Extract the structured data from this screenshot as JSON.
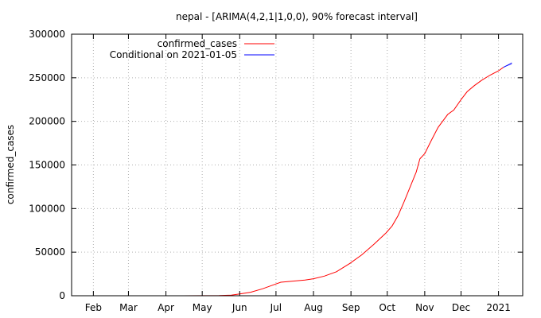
{
  "chart_data": {
    "type": "line",
    "title": "nepal -  [ARIMA(4,2,1|1,0,0), 90% forecast interval]",
    "xlabel": "",
    "ylabel": "confirmed_cases",
    "x_ticks": [
      "Feb",
      "Mar",
      "Apr",
      "May",
      "Jun",
      "Jul",
      "Aug",
      "Sep",
      "Oct",
      "Nov",
      "Dec",
      "2021"
    ],
    "x_tick_dates": [
      "2020-02-01",
      "2020-03-01",
      "2020-04-01",
      "2020-05-01",
      "2020-06-01",
      "2020-07-01",
      "2020-08-01",
      "2020-09-01",
      "2020-10-01",
      "2020-11-01",
      "2020-12-01",
      "2021-01-01"
    ],
    "xlim": [
      "2020-01-14",
      "2021-01-21"
    ],
    "ylim": [
      0,
      300000
    ],
    "y_ticks": [
      0,
      50000,
      100000,
      150000,
      200000,
      250000,
      300000
    ],
    "grid": true,
    "legend_position": "top-left",
    "series": [
      {
        "name": "confirmed_cases",
        "color": "#ff0000",
        "points": [
          [
            "2020-01-23",
            1
          ],
          [
            "2020-03-23",
            2
          ],
          [
            "2020-04-15",
            30
          ],
          [
            "2020-05-01",
            60
          ],
          [
            "2020-05-15",
            300
          ],
          [
            "2020-05-25",
            700
          ],
          [
            "2020-06-01",
            2000
          ],
          [
            "2020-06-10",
            4000
          ],
          [
            "2020-06-20",
            8000
          ],
          [
            "2020-06-30",
            13000
          ],
          [
            "2020-07-05",
            15500
          ],
          [
            "2020-07-15",
            16800
          ],
          [
            "2020-07-25",
            18000
          ],
          [
            "2020-08-01",
            19500
          ],
          [
            "2020-08-10",
            22500
          ],
          [
            "2020-08-20",
            27500
          ],
          [
            "2020-08-31",
            37000
          ],
          [
            "2020-09-10",
            47000
          ],
          [
            "2020-09-20",
            59000
          ],
          [
            "2020-09-30",
            72000
          ],
          [
            "2020-10-05",
            80000
          ],
          [
            "2020-10-10",
            92000
          ],
          [
            "2020-10-15",
            108000
          ],
          [
            "2020-10-20",
            125000
          ],
          [
            "2020-10-25",
            142000
          ],
          [
            "2020-10-28",
            157000
          ],
          [
            "2020-11-01",
            163000
          ],
          [
            "2020-11-06",
            177000
          ],
          [
            "2020-11-12",
            193000
          ],
          [
            "2020-11-20",
            208000
          ],
          [
            "2020-11-25",
            213000
          ],
          [
            "2020-12-01",
            225000
          ],
          [
            "2020-12-06",
            234000
          ],
          [
            "2020-12-12",
            241000
          ],
          [
            "2020-12-18",
            247000
          ],
          [
            "2020-12-25",
            253000
          ],
          [
            "2021-01-01",
            258000
          ],
          [
            "2021-01-05",
            262000
          ]
        ]
      },
      {
        "name": "Conditional on 2021-01-05",
        "color": "#0000ff",
        "points": [
          [
            "2021-01-05",
            262000
          ],
          [
            "2021-01-07",
            263300
          ],
          [
            "2021-01-09",
            264700
          ],
          [
            "2021-01-11",
            266000
          ],
          [
            "2021-01-12",
            266700
          ]
        ],
        "interval_upper": [
          [
            "2021-01-05",
            262000
          ],
          [
            "2021-01-07",
            263800
          ],
          [
            "2021-01-09",
            265600
          ],
          [
            "2021-01-11",
            267300
          ],
          [
            "2021-01-12",
            268300
          ]
        ],
        "interval_lower": [
          [
            "2021-01-05",
            262000
          ],
          [
            "2021-01-07",
            262800
          ],
          [
            "2021-01-09",
            263700
          ],
          [
            "2021-01-11",
            264600
          ],
          [
            "2021-01-12",
            265100
          ]
        ]
      }
    ]
  }
}
